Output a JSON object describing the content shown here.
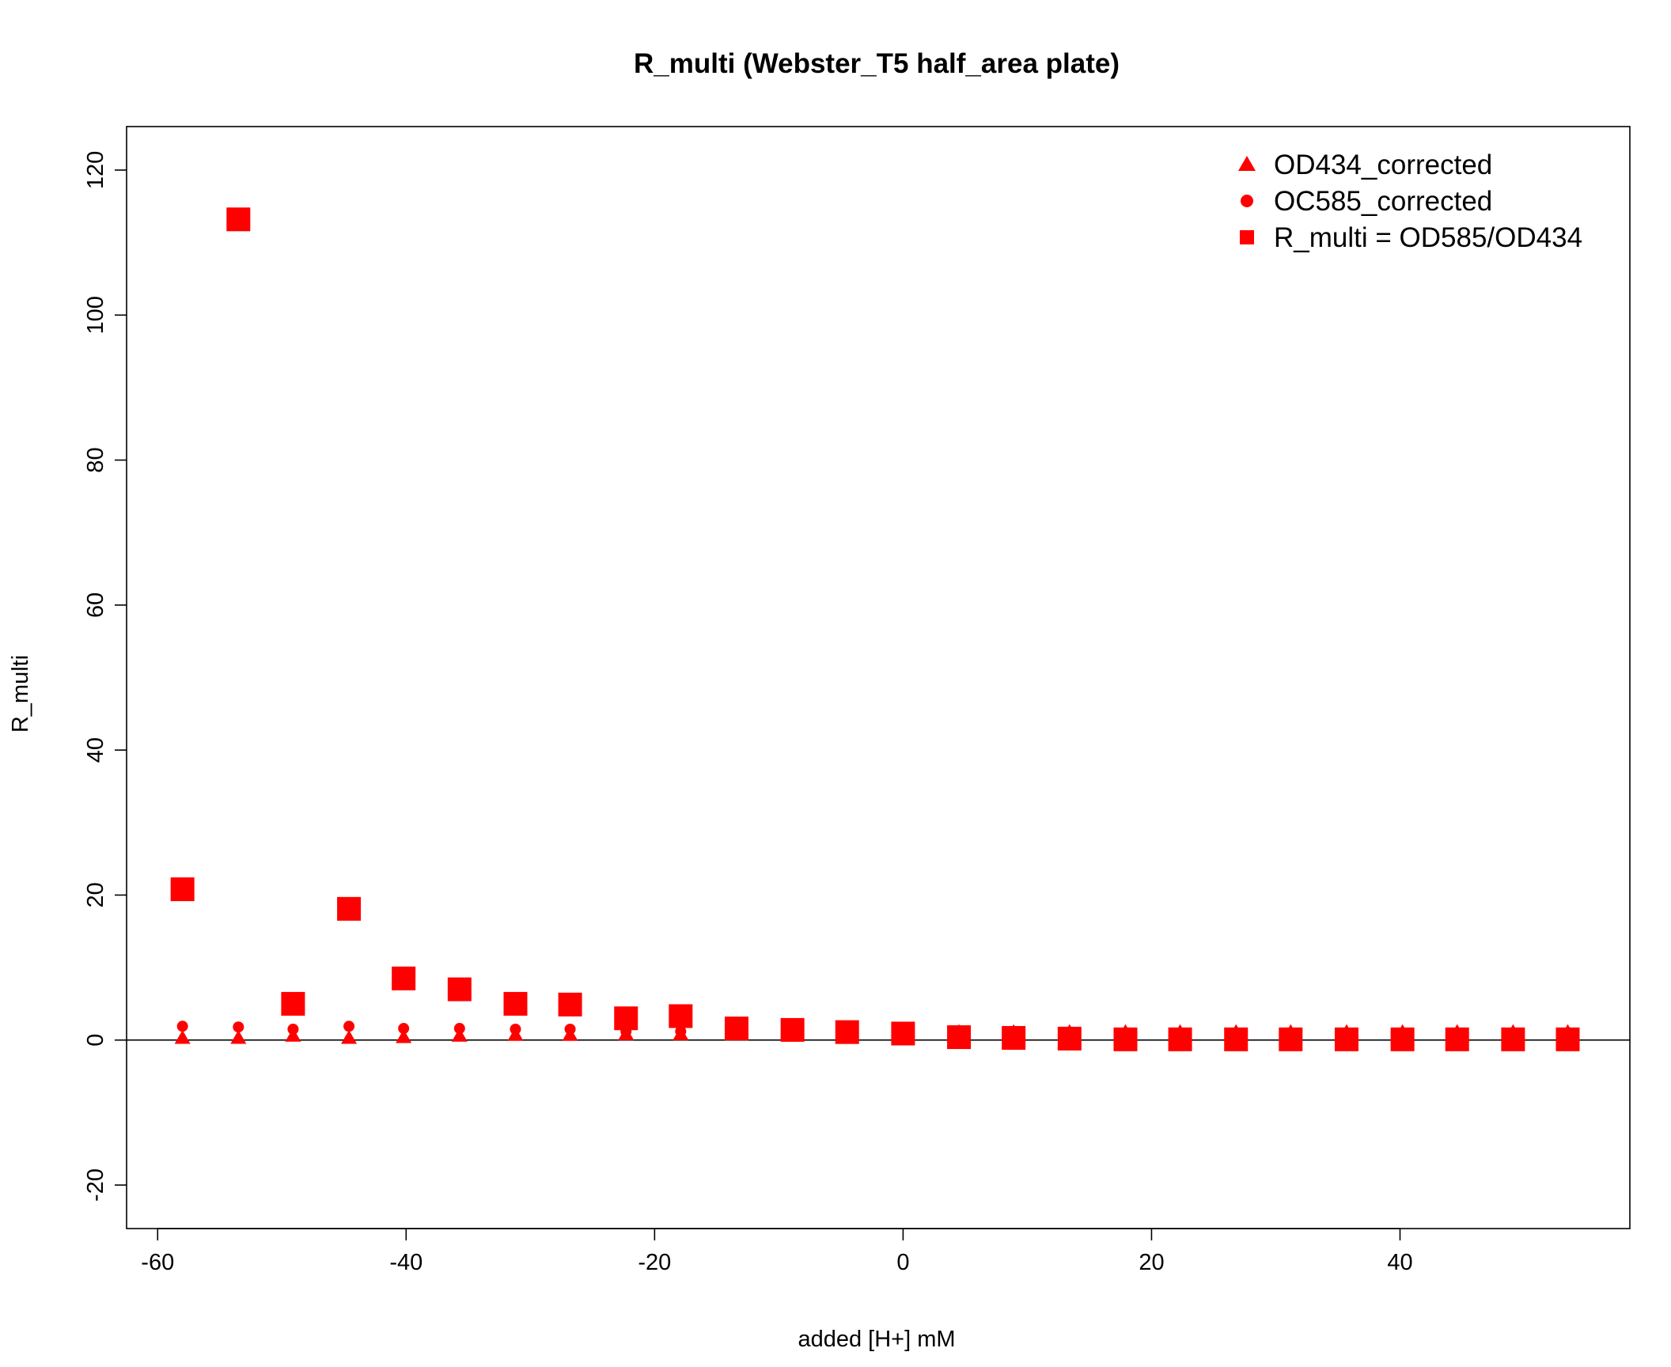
{
  "chart_data": {
    "type": "scatter",
    "title": "R_multi (Webster_T5 half_area plate)",
    "xlabel": "added [H+] mM",
    "ylabel": "R_multi",
    "xlim": [
      -62.5,
      58.5
    ],
    "ylim": [
      -26,
      126
    ],
    "xticks": [
      -60,
      -40,
      -20,
      0,
      20,
      40
    ],
    "yticks": [
      -20,
      0,
      20,
      40,
      60,
      80,
      100,
      120
    ],
    "reference_line_y": 0,
    "grid": false,
    "legend_position": "top-right",
    "marker_color": "#ff0000",
    "x": [
      -58.0,
      -53.5,
      -49.1,
      -44.6,
      -40.2,
      -35.7,
      -31.2,
      -26.8,
      -22.3,
      -17.9,
      -13.4,
      -8.9,
      -4.5,
      0.0,
      4.5,
      8.9,
      13.4,
      17.9,
      22.3,
      26.8,
      31.2,
      35.7,
      40.2,
      44.6,
      49.1,
      53.5
    ],
    "series": [
      {
        "name": "OD434_corrected",
        "marker": "triangle",
        "values": [
          0.3,
          0.3,
          0.6,
          0.3,
          0.4,
          0.6,
          0.7,
          0.7,
          0.8,
          0.8,
          0.9,
          1.0,
          1.0,
          1.1,
          1.1,
          1.1,
          1.1,
          1.1,
          1.1,
          1.1,
          1.1,
          1.1,
          1.1,
          1.1,
          1.1,
          1.1
        ]
      },
      {
        "name": "OC585_corrected",
        "marker": "circle",
        "values": [
          1.9,
          1.8,
          1.5,
          1.9,
          1.6,
          1.6,
          1.5,
          1.5,
          1.2,
          1.2,
          1.0,
          0.9,
          0.8,
          0.7,
          0.5,
          0.4,
          0.3,
          0.3,
          0.2,
          0.2,
          0.2,
          0.2,
          0.2,
          0.2,
          0.2,
          0.2
        ]
      },
      {
        "name": "R_multi = OD585/OD434",
        "marker": "square",
        "values": [
          20.8,
          113.2,
          5.0,
          18.1,
          8.5,
          7.0,
          5.0,
          4.9,
          3.0,
          3.3,
          1.6,
          1.4,
          1.1,
          0.9,
          0.4,
          0.3,
          0.2,
          0.1,
          0.1,
          0.1,
          0.1,
          0.1,
          0.1,
          0.1,
          0.1,
          0.1
        ]
      }
    ]
  }
}
